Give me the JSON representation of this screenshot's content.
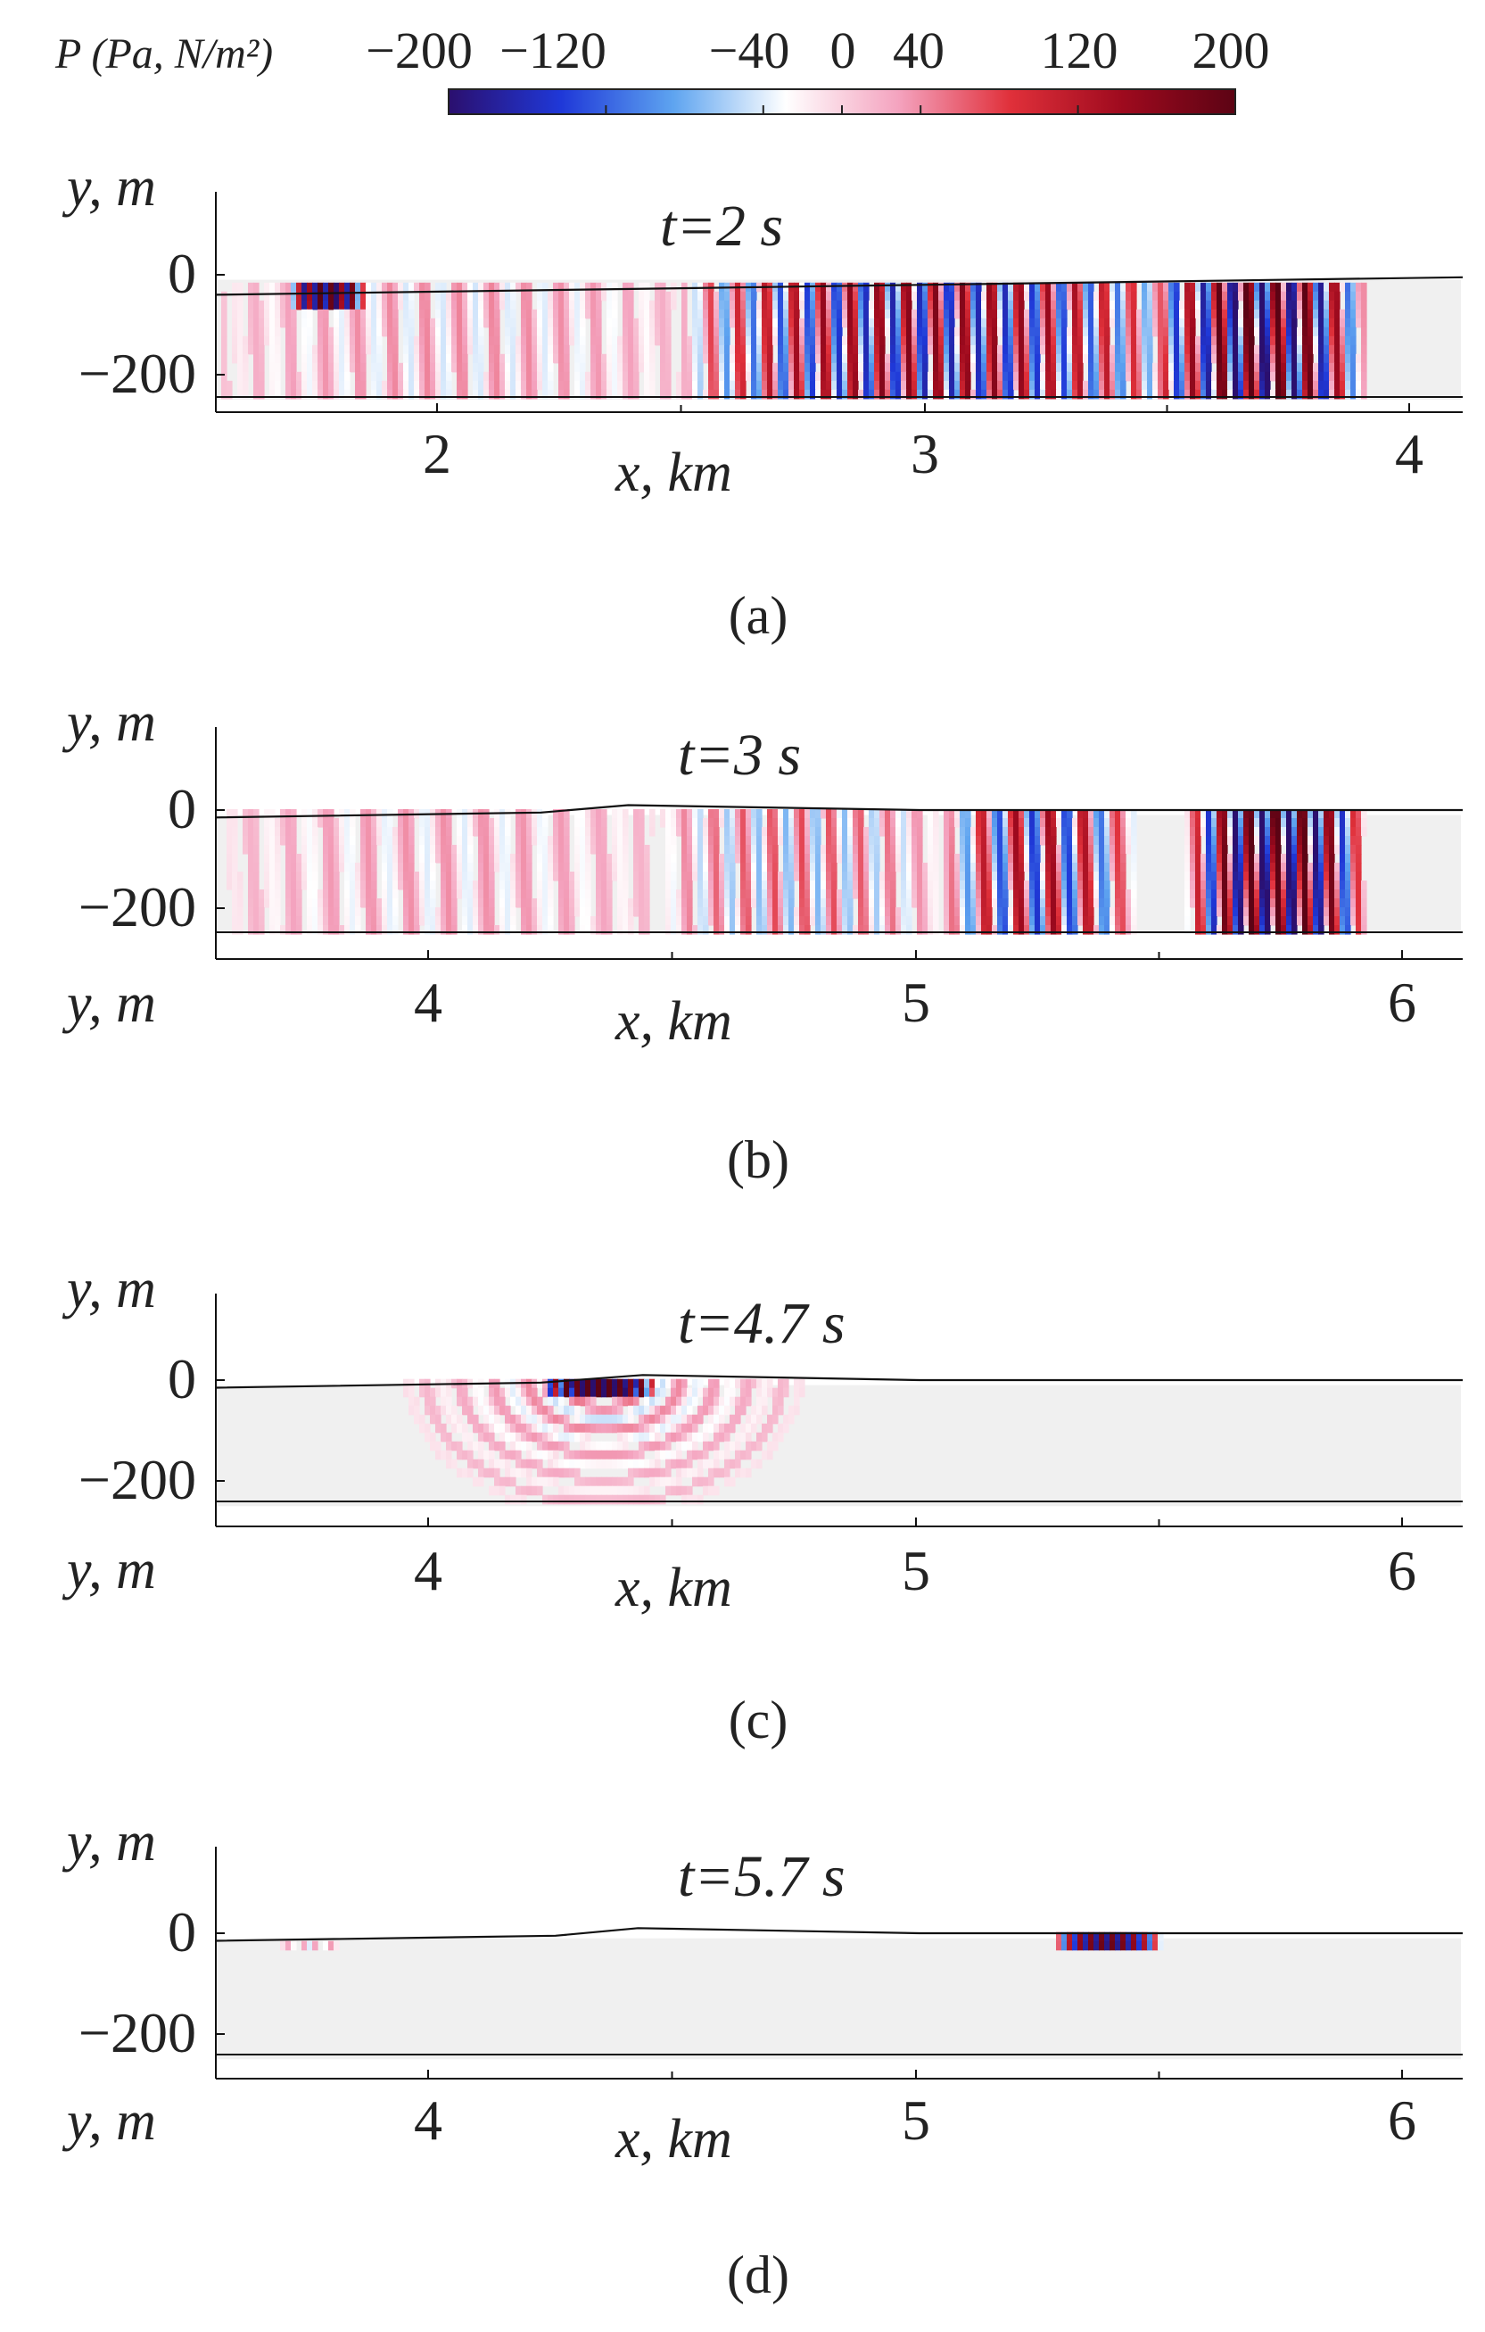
{
  "colorbar": {
    "label": "P (Pa, N/m²)",
    "ticks": [
      {
        "value": -200,
        "label": "−200"
      },
      {
        "value": -120,
        "label": "−120"
      },
      {
        "value": -40,
        "label": "−40"
      },
      {
        "value": 0,
        "label": "0"
      },
      {
        "value": 40,
        "label": "40"
      },
      {
        "value": 120,
        "label": "120"
      },
      {
        "value": 200,
        "label": "200"
      }
    ],
    "range": [
      -200,
      200
    ],
    "colors": [
      "#2b0f6e",
      "#1f38d8",
      "#5ea4f0",
      "#ffffff",
      "#f4a3bf",
      "#e0303a",
      "#9e0a1e",
      "#5c0314"
    ]
  },
  "chart_data": [
    {
      "type": "heatmap",
      "title": "t=2 s",
      "panel_label": "(a)",
      "xlabel": "x, km",
      "ylabel": "y, m",
      "xlim": [
        1.55,
        4.12
      ],
      "ylim": [
        -280,
        170
      ],
      "xticks": [
        "2",
        "3",
        "4"
      ],
      "yticks": [
        "0",
        "−200"
      ],
      "surface": [
        [
          1.55,
          -40
        ],
        [
          4.12,
          -5
        ]
      ],
      "wave_packets": [
        {
          "x_start": 1.7,
          "x_end": 1.86,
          "y_top": -10,
          "y_bottom": -70,
          "amplitude": 200,
          "wavelength_km": 0.022
        },
        {
          "x_start": 1.55,
          "x_end": 2.55,
          "y_top": -20,
          "y_bottom": -250,
          "amplitude": 45,
          "wavelength_km": 0.07
        },
        {
          "x_start": 2.5,
          "x_end": 3.55,
          "y_top": -20,
          "y_bottom": -250,
          "amplitude": 170,
          "wavelength_km": 0.058
        },
        {
          "x_start": 3.5,
          "x_end": 3.92,
          "y_top": -10,
          "y_bottom": -250,
          "amplitude": 230,
          "wavelength_km": 0.06
        }
      ]
    },
    {
      "type": "heatmap",
      "title": "t=3 s",
      "panel_label": "(b)",
      "xlabel": "x, km",
      "ylabel": "y, m",
      "xlim": [
        3.55,
        6.12
      ],
      "ylim": [
        -300,
        170
      ],
      "xticks": [
        "4",
        "5",
        "6"
      ],
      "yticks": [
        "0",
        "−200"
      ],
      "surface": [
        [
          3.55,
          -15
        ],
        [
          4.22,
          -5
        ],
        [
          4.4,
          10
        ],
        [
          5.0,
          0
        ],
        [
          6.12,
          0
        ]
      ],
      "wave_packets": [
        {
          "x_start": 3.55,
          "x_end": 4.5,
          "y_top": -5,
          "y_bottom": -250,
          "amplitude": 40,
          "wavelength_km": 0.08
        },
        {
          "x_start": 4.45,
          "x_end": 5.05,
          "y_top": 0,
          "y_bottom": -250,
          "amplitude": 75,
          "wavelength_km": 0.06
        },
        {
          "x_start": 5.05,
          "x_end": 5.45,
          "y_top": 0,
          "y_bottom": -250,
          "amplitude": 150,
          "wavelength_km": 0.07
        },
        {
          "x_start": 5.55,
          "x_end": 5.92,
          "y_top": 0,
          "y_bottom": -250,
          "amplitude": 240,
          "wavelength_km": 0.055
        }
      ]
    },
    {
      "type": "heatmap",
      "title": "t=4.7 s",
      "panel_label": "(c)",
      "xlabel": "x, km",
      "ylabel": "y, m",
      "xlim": [
        3.55,
        6.12
      ],
      "ylim": [
        -300,
        170
      ],
      "xticks": [
        "4",
        "5",
        "6"
      ],
      "yticks": [
        "0",
        "−200"
      ],
      "surface": [
        [
          3.55,
          -15
        ],
        [
          4.22,
          -5
        ],
        [
          4.43,
          10
        ],
        [
          5.0,
          0
        ],
        [
          6.12,
          0
        ]
      ],
      "wave_packets": [
        {
          "x_start": 4.22,
          "x_end": 4.46,
          "y_top": 8,
          "y_bottom": -25,
          "amplitude": 220,
          "wavelength_km": 0.022
        }
      ],
      "radial_waves": [
        {
          "center_x": 4.35,
          "center_y": 5,
          "radius_min_km": 0.06,
          "radius_max_km": 0.5,
          "y_bottom": -250,
          "amplitude": 55,
          "wavelength_km": 0.07
        }
      ]
    },
    {
      "type": "heatmap",
      "title": "t=5.7 s",
      "panel_label": "(d)",
      "xlabel": "x, km",
      "ylabel": "y, m",
      "xlim": [
        3.55,
        6.12
      ],
      "ylim": [
        -300,
        170
      ],
      "xticks": [
        "4",
        "5",
        "6"
      ],
      "yticks": [
        "0",
        "−200"
      ],
      "surface": [
        [
          3.55,
          -15
        ],
        [
          4.25,
          -5
        ],
        [
          4.42,
          10
        ],
        [
          5.0,
          0
        ],
        [
          6.12,
          0
        ]
      ],
      "wave_packets": [
        {
          "x_start": 5.28,
          "x_end": 5.5,
          "y_top": 0,
          "y_bottom": -38,
          "amplitude": 210,
          "wavelength_km": 0.022
        },
        {
          "x_start": 3.68,
          "x_end": 3.82,
          "y_top": -10,
          "y_bottom": -30,
          "amplitude": 40,
          "wavelength_km": 0.03
        }
      ]
    }
  ]
}
